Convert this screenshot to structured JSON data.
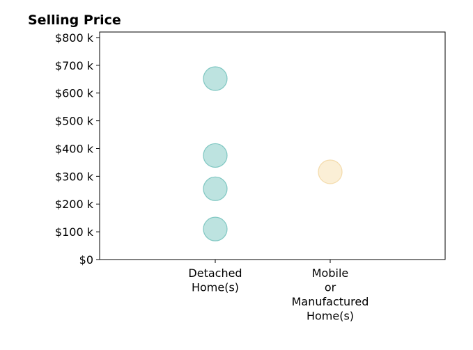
{
  "chart_data": {
    "type": "scatter",
    "title": "Selling Price",
    "xlabel": "",
    "ylabel": "",
    "categories": [
      [
        "Detached",
        "Home(s)"
      ],
      [
        "Mobile",
        "or",
        "Manufactured",
        "Home(s)"
      ]
    ],
    "yticks": [
      0,
      100000,
      200000,
      300000,
      400000,
      500000,
      600000,
      700000,
      800000
    ],
    "ytick_labels": [
      "$0",
      "$100 k",
      "$200 k",
      "$300 k",
      "$400 k",
      "$500 k",
      "$600 k",
      "$700 k",
      "$800 k"
    ],
    "ylim": [
      0,
      820000
    ],
    "grid": false,
    "series": [
      {
        "category_index": 0,
        "color": "#8ecfca",
        "edge_color": "#6fc0ba",
        "values": [
          652000,
          375000,
          255000,
          110000
        ]
      },
      {
        "category_index": 1,
        "color": "#f8e3b8",
        "edge_color": "#f2d6a0",
        "values": [
          316000
        ]
      }
    ]
  }
}
